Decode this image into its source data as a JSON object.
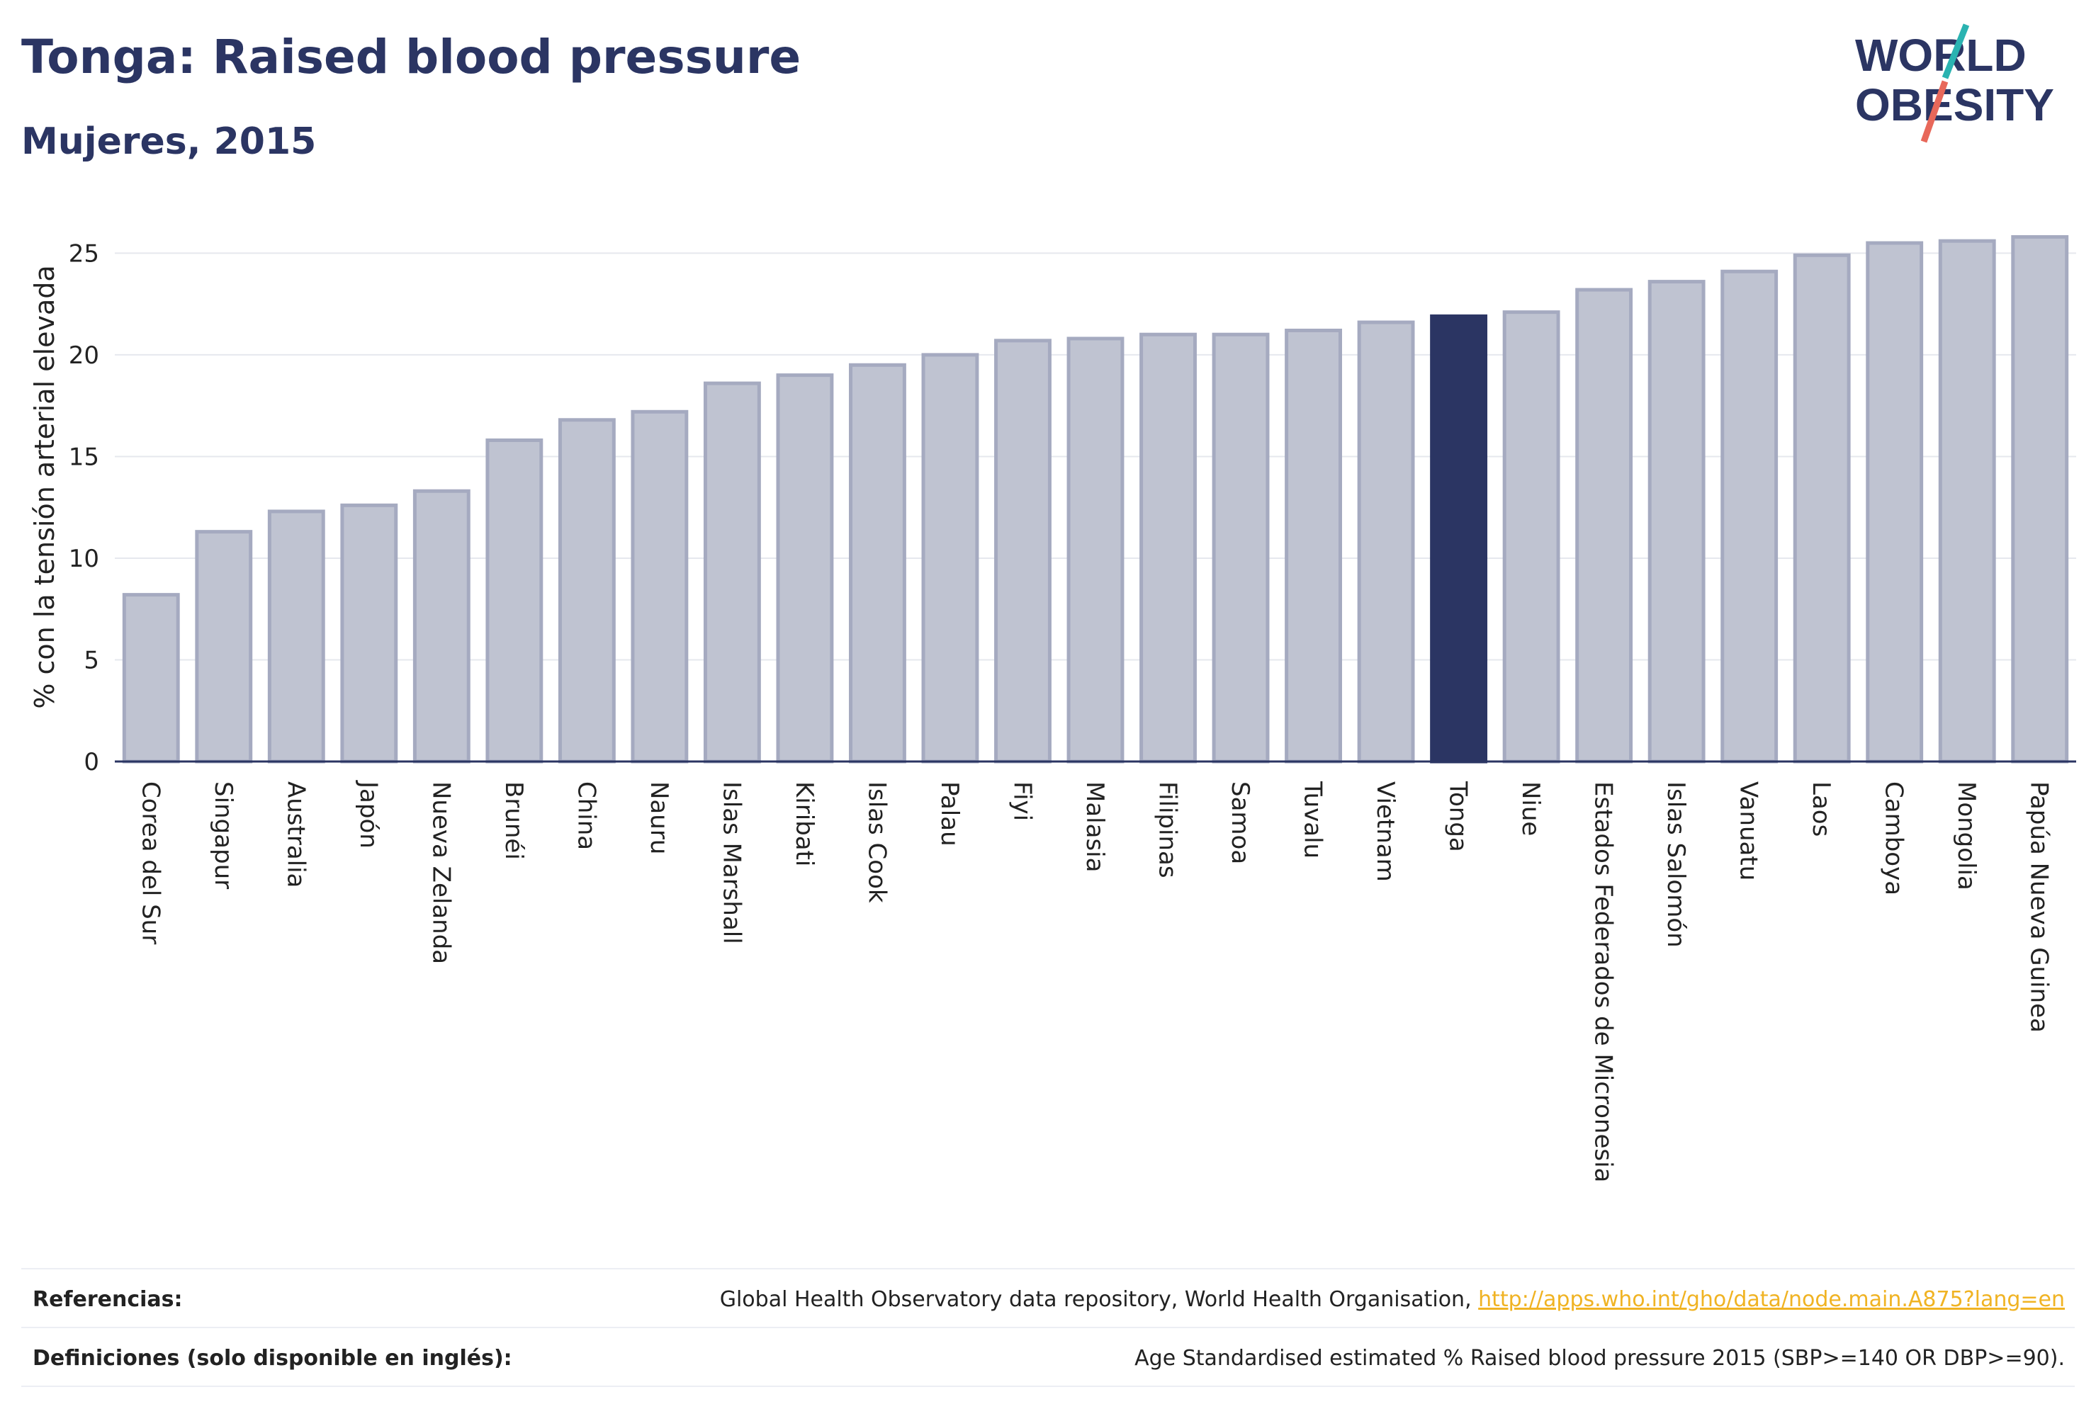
{
  "header": {
    "title": "Tonga: Raised blood pressure",
    "subtitle": "Mujeres, 2015"
  },
  "logo": {
    "line1": "WORLD",
    "line2": "OBESITY",
    "colors": {
      "text": "#2b3563",
      "slash_teal": "#2ab3b1",
      "slash_red": "#e8685a"
    }
  },
  "chart_data": {
    "type": "bar",
    "ylabel": "% con la tensión arterial elevada",
    "ylim": [
      0,
      27
    ],
    "yticks": [
      0,
      5,
      10,
      15,
      20,
      25
    ],
    "grid": true,
    "highlight": "Tonga",
    "colors": {
      "bar": "#bfc3d1",
      "bar_edge": "#a5aac0",
      "highlight": "#2b3563"
    },
    "categories": [
      "Corea del Sur",
      "Singapur",
      "Australia",
      "Japón",
      "Nueva Zelanda",
      "Brunéi",
      "China",
      "Nauru",
      "Islas Marshall",
      "Kiribati",
      "Islas Cook",
      "Palau",
      "Fiyi",
      "Malasia",
      "Filipinas",
      "Samoa",
      "Tuvalu",
      "Vietnam",
      "Tonga",
      "Niue",
      "Estados Federados de Micronesia",
      "Islas Salomón",
      "Vanuatu",
      "Laos",
      "Camboya",
      "Mongolia",
      "Papúa Nueva Guinea"
    ],
    "values": [
      8.2,
      11.3,
      12.3,
      12.6,
      13.3,
      15.8,
      16.8,
      17.2,
      18.6,
      19.0,
      19.5,
      20.0,
      20.7,
      20.8,
      21.0,
      21.0,
      21.2,
      21.6,
      21.9,
      22.1,
      23.2,
      23.6,
      24.1,
      24.9,
      25.5,
      25.6,
      25.8
    ]
  },
  "footer": {
    "references_label": "Referencias:",
    "references_text": "Global Health Observatory data repository, World Health Organisation, ",
    "references_link": "http://apps.who.int/gho/data/node.main.A875?lang=en",
    "definitions_label": "Definiciones (solo disponible en inglés):",
    "definitions_text": "Age Standardised estimated % Raised blood pressure 2015 (SBP>=140 OR DBP>=90)."
  }
}
